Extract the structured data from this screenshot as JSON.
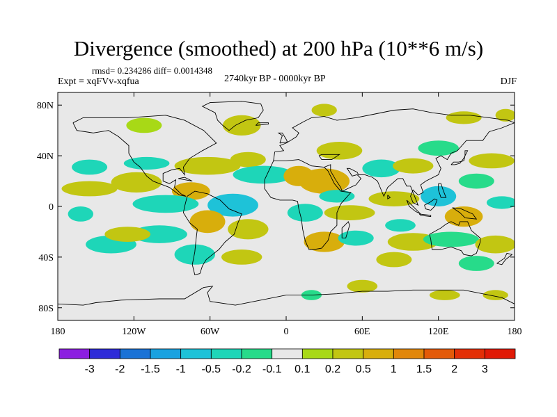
{
  "header": {
    "title": "Divergence (smoothed) at 200 hPa (10**6 m/s)",
    "stats": "rmsd= 0.234286  diff= 0.0014348",
    "experiment": "Expt = xqFVv-xqfua",
    "period": "2740kyr BP - 0000kyr BP",
    "season": "DJF"
  },
  "chart_data": {
    "type": "heatmap",
    "title": "Divergence (smoothed) at 200 hPa (10**6 m/s)",
    "x_axis": {
      "range": [
        -180,
        180
      ],
      "ticks": [
        -180,
        -120,
        -60,
        0,
        60,
        120,
        180
      ],
      "tick_labels": [
        "180",
        "120W",
        "60W",
        "0",
        "60E",
        "120E",
        "180"
      ]
    },
    "y_axis": {
      "range": [
        -90,
        90
      ],
      "ticks": [
        80,
        40,
        0,
        -40,
        -80
      ],
      "tick_labels": [
        "80N",
        "40N",
        "0",
        "40S",
        "80S"
      ]
    },
    "colorbar": {
      "levels": [
        "-3",
        "-2",
        "-1.5",
        "-1",
        "-0.5",
        "-0.2",
        "-0.1",
        "0.1",
        "0.2",
        "0.5",
        "1",
        "1.5",
        "2",
        "3"
      ],
      "colors": [
        "#8c1fe0",
        "#2e2bd8",
        "#1a72d6",
        "#1aa2e0",
        "#1ec2d8",
        "#1ed6b8",
        "#27db8a",
        "#e8e8e8",
        "#a8d916",
        "#c2c612",
        "#d8ae0c",
        "#e1870a",
        "#e35a08",
        "#e32f06",
        "#e01a06"
      ]
    },
    "regions": [
      {
        "lon": -155,
        "lat": 31,
        "rlon": 14,
        "rlat": 6,
        "v": -0.3
      },
      {
        "lon": -110,
        "lat": 34,
        "rlon": 18,
        "rlat": 5,
        "v": -0.3
      },
      {
        "lon": -62,
        "lat": 32,
        "rlon": 26,
        "rlat": 7,
        "v": 0.35
      },
      {
        "lon": -30,
        "lat": 37,
        "rlon": 14,
        "rlat": 6,
        "v": 0.3
      },
      {
        "lon": -112,
        "lat": 64,
        "rlon": 14,
        "rlat": 6,
        "v": 0.15
      },
      {
        "lon": -35,
        "lat": 64,
        "rlon": 15,
        "rlat": 8,
        "v": 0.2
      },
      {
        "lon": -18,
        "lat": 25,
        "rlon": 24,
        "rlat": 7,
        "v": -0.3
      },
      {
        "lon": -118,
        "lat": 19,
        "rlon": 20,
        "rlat": 8,
        "v": 0.3
      },
      {
        "lon": -155,
        "lat": 14,
        "rlon": 22,
        "rlat": 6,
        "v": 0.25
      },
      {
        "lon": -75,
        "lat": 12,
        "rlon": 15,
        "rlat": 7,
        "v": 0.6
      },
      {
        "lon": -95,
        "lat": 2,
        "rlon": 26,
        "rlat": 7,
        "v": -0.5
      },
      {
        "lon": -42,
        "lat": 1,
        "rlon": 20,
        "rlat": 9,
        "v": -0.6
      },
      {
        "lon": -162,
        "lat": -6,
        "rlon": 10,
        "rlat": 6,
        "v": -0.3
      },
      {
        "lon": -62,
        "lat": -12,
        "rlon": 14,
        "rlat": 9,
        "v": 0.5
      },
      {
        "lon": -30,
        "lat": -18,
        "rlon": 16,
        "rlat": 8,
        "v": 0.4
      },
      {
        "lon": -100,
        "lat": -22,
        "rlon": 22,
        "rlat": 7,
        "v": -0.35
      },
      {
        "lon": -138,
        "lat": -30,
        "rlon": 20,
        "rlat": 7,
        "v": -0.3
      },
      {
        "lon": -125,
        "lat": -22,
        "rlon": 18,
        "rlat": 6,
        "v": 0.2
      },
      {
        "lon": -72,
        "lat": -38,
        "rlon": 16,
        "rlat": 8,
        "v": -0.3
      },
      {
        "lon": -35,
        "lat": -40,
        "rlon": 16,
        "rlat": 6,
        "v": 0.25
      },
      {
        "lon": 10,
        "lat": 24,
        "rlon": 12,
        "rlat": 8,
        "v": 0.8
      },
      {
        "lon": 30,
        "lat": 20,
        "rlon": 20,
        "rlat": 10,
        "v": 0.6
      },
      {
        "lon": 40,
        "lat": 8,
        "rlon": 14,
        "rlat": 5,
        "v": -0.3
      },
      {
        "lon": 15,
        "lat": -5,
        "rlon": 14,
        "rlat": 7,
        "v": -0.5
      },
      {
        "lon": 50,
        "lat": -5,
        "rlon": 20,
        "rlat": 6,
        "v": 0.4
      },
      {
        "lon": 30,
        "lat": -28,
        "rlon": 16,
        "rlat": 8,
        "v": 0.5
      },
      {
        "lon": 55,
        "lat": -25,
        "rlon": 14,
        "rlat": 6,
        "v": -0.25
      },
      {
        "lon": 42,
        "lat": 44,
        "rlon": 18,
        "rlat": 7,
        "v": 0.35
      },
      {
        "lon": 75,
        "lat": 30,
        "rlon": 15,
        "rlat": 7,
        "v": -0.3
      },
      {
        "lon": 85,
        "lat": 6,
        "rlon": 20,
        "rlat": 6,
        "v": 0.3
      },
      {
        "lon": 100,
        "lat": 32,
        "rlon": 16,
        "rlat": 6,
        "v": 0.3
      },
      {
        "lon": 120,
        "lat": 8,
        "rlon": 14,
        "rlat": 8,
        "v": -0.6
      },
      {
        "lon": 140,
        "lat": -8,
        "rlon": 15,
        "rlat": 8,
        "v": 0.8
      },
      {
        "lon": 170,
        "lat": 3,
        "rlon": 12,
        "rlat": 5,
        "v": -0.3
      },
      {
        "lon": 162,
        "lat": 36,
        "rlon": 18,
        "rlat": 6,
        "v": 0.25
      },
      {
        "lon": 120,
        "lat": 46,
        "rlon": 16,
        "rlat": 6,
        "v": -0.2
      },
      {
        "lon": 150,
        "lat": 20,
        "rlon": 14,
        "rlat": 6,
        "v": -0.2
      },
      {
        "lon": 100,
        "lat": -28,
        "rlon": 20,
        "rlat": 7,
        "v": 0.25
      },
      {
        "lon": 130,
        "lat": -26,
        "rlon": 22,
        "rlat": 6,
        "v": -0.2
      },
      {
        "lon": 90,
        "lat": -15,
        "rlon": 12,
        "rlat": 5,
        "v": -0.3
      },
      {
        "lon": 165,
        "lat": -30,
        "rlon": 16,
        "rlat": 7,
        "v": 0.4
      },
      {
        "lon": 150,
        "lat": -45,
        "rlon": 14,
        "rlat": 6,
        "v": -0.2
      },
      {
        "lon": 85,
        "lat": -42,
        "rlon": 14,
        "rlat": 6,
        "v": 0.2
      },
      {
        "lon": 60,
        "lat": -63,
        "rlon": 12,
        "rlat": 5,
        "v": 0.3
      },
      {
        "lon": 20,
        "lat": -70,
        "rlon": 8,
        "rlat": 4,
        "v": -0.2
      },
      {
        "lon": 125,
        "lat": -70,
        "rlon": 12,
        "rlat": 4,
        "v": 0.2
      },
      {
        "lon": 165,
        "lat": -70,
        "rlon": 10,
        "rlat": 4,
        "v": 0.2
      },
      {
        "lon": 140,
        "lat": 70,
        "rlon": 14,
        "rlat": 5,
        "v": 0.2
      },
      {
        "lon": 30,
        "lat": 76,
        "rlon": 10,
        "rlat": 5,
        "v": 0.2
      },
      {
        "lon": 173,
        "lat": 72,
        "rlon": 8,
        "rlat": 5,
        "v": 0.3
      }
    ]
  }
}
